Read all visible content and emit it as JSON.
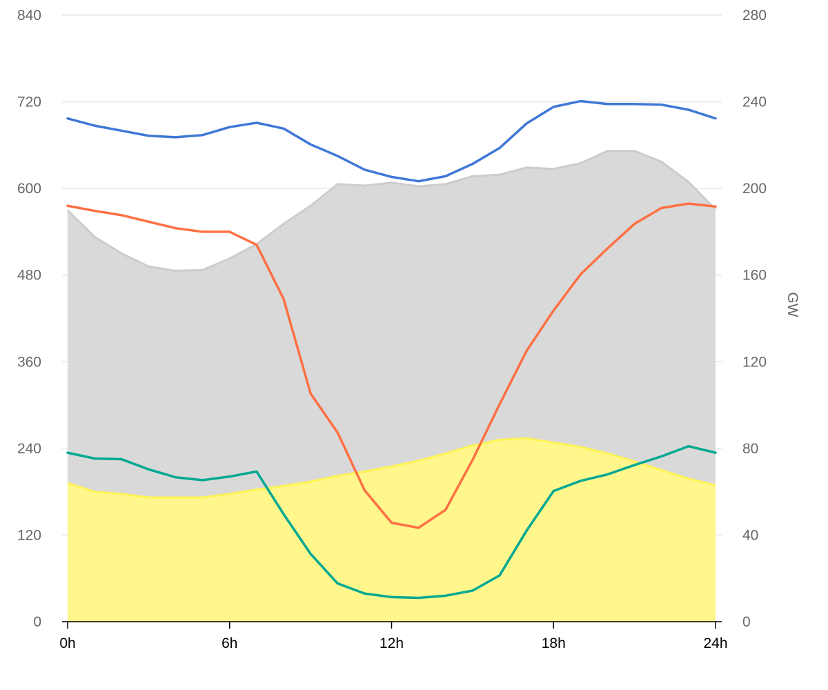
{
  "chart_data": {
    "type": "area",
    "x": [
      0,
      1,
      2,
      3,
      4,
      5,
      6,
      7,
      8,
      9,
      10,
      11,
      12,
      13,
      14,
      15,
      16,
      17,
      18,
      19,
      20,
      21,
      22,
      23,
      24
    ],
    "x_tick_values": [
      0,
      6,
      12,
      18,
      24
    ],
    "x_tick_labels": [
      "0h",
      "6h",
      "12h",
      "18h",
      "24h"
    ],
    "xlim": [
      0,
      24
    ],
    "y_left": {
      "ylim": [
        0,
        840
      ],
      "ticks": [
        0,
        120,
        240,
        360,
        480,
        600,
        720,
        840
      ],
      "tick_labels": [
        "0",
        "120",
        "240",
        "360",
        "480",
        "600",
        "720",
        "840"
      ],
      "label": ""
    },
    "y_right": {
      "ylim": [
        0,
        280
      ],
      "ticks": [
        0,
        40,
        80,
        120,
        160,
        200,
        240,
        280
      ],
      "tick_labels": [
        "0",
        "40",
        "80",
        "120",
        "160",
        "200",
        "240",
        "280"
      ],
      "label": "GW"
    },
    "grid": true,
    "series": [
      {
        "kind": "area",
        "axis": "left",
        "color": "#d9d9d9",
        "stroke": "#cccccc",
        "values": [
          570,
          533,
          510,
          492,
          486,
          487,
          503,
          523,
          551,
          576,
          606,
          604,
          608,
          603,
          606,
          617,
          619,
          629,
          627,
          635,
          652,
          652,
          637,
          609,
          571
        ]
      },
      {
        "kind": "area",
        "axis": "left",
        "color": "#fff68c",
        "stroke": "#fff455",
        "values": [
          192,
          180,
          177,
          172,
          172,
          172,
          177,
          183,
          188,
          194,
          202,
          208,
          215,
          223,
          233,
          244,
          252,
          254,
          248,
          242,
          233,
          222,
          210,
          198,
          189
        ]
      },
      {
        "kind": "line",
        "axis": "left",
        "color": "#3f78d6",
        "values": [
          697,
          687,
          680,
          673,
          671,
          674,
          685,
          691,
          683,
          661,
          645,
          626,
          616,
          610,
          617,
          634,
          656,
          690,
          713,
          721,
          717,
          717,
          716,
          709,
          697
        ]
      },
      {
        "kind": "line",
        "axis": "left",
        "color": "#ff7043",
        "values": [
          576,
          569,
          563,
          554,
          545,
          540,
          540,
          522,
          447,
          316,
          262,
          182,
          137,
          130,
          155,
          224,
          301,
          375,
          431,
          481,
          517,
          551,
          573,
          579,
          575
        ]
      },
      {
        "kind": "line",
        "axis": "left",
        "color": "#00a892",
        "values": [
          234,
          226,
          225,
          211,
          200,
          196,
          201,
          208,
          149,
          94,
          53,
          39,
          34,
          33,
          36,
          43,
          64,
          126,
          181,
          195,
          204,
          217,
          229,
          243,
          234
        ]
      }
    ]
  }
}
